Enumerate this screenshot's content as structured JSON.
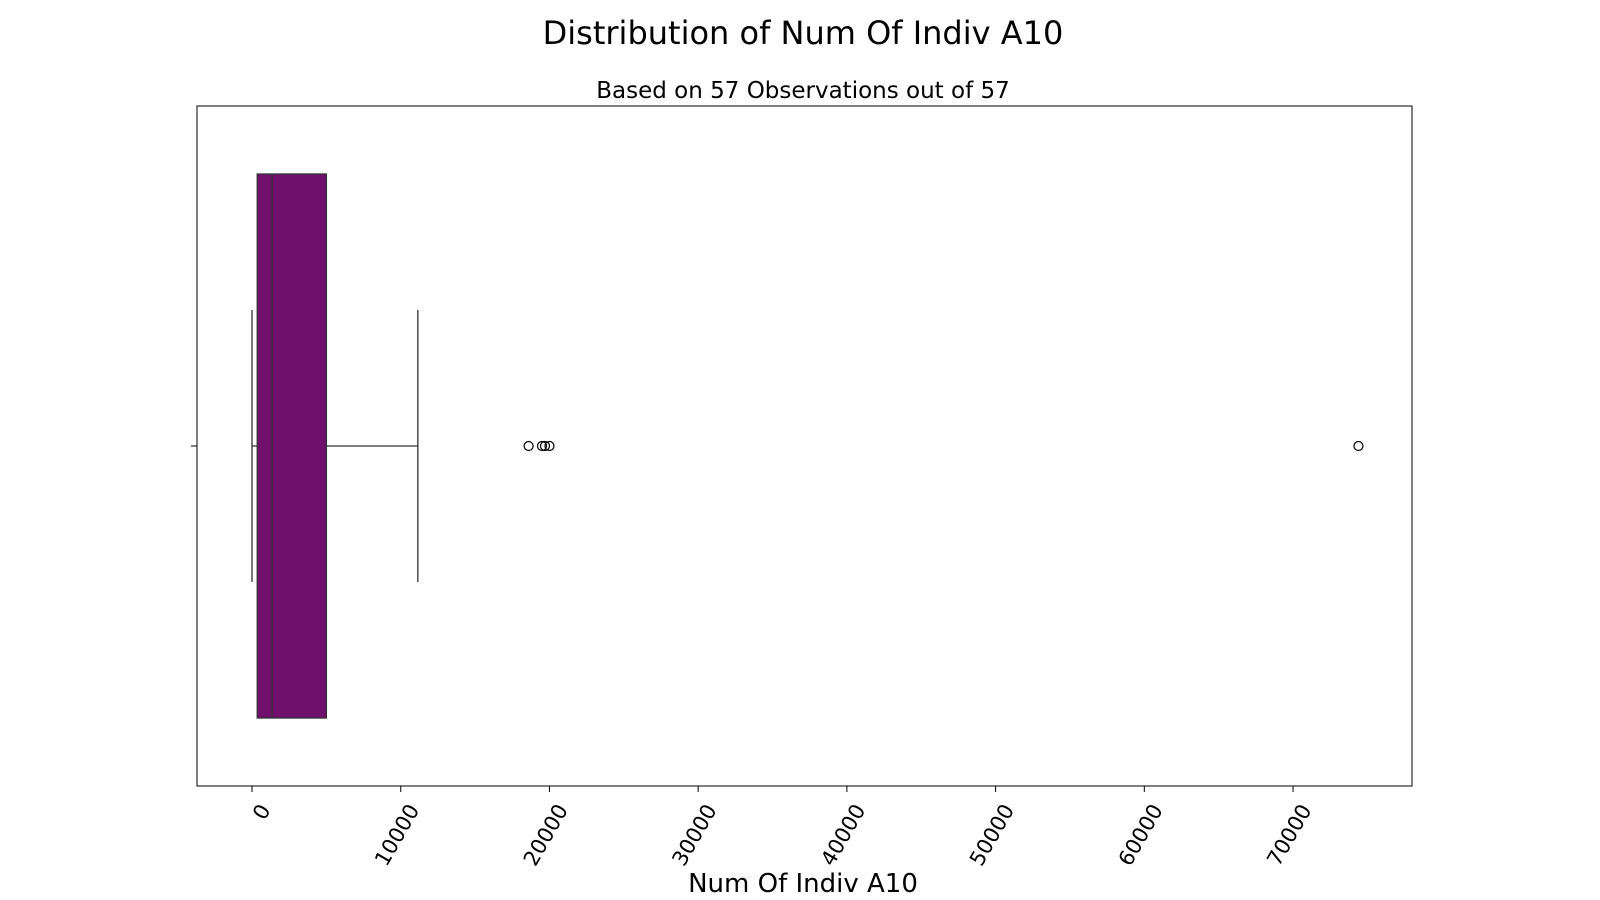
{
  "chart_data": {
    "type": "box",
    "title": "Distribution of Num Of Indiv A10",
    "subtitle": "Based on 57 Observations out of 57",
    "xlabel": "Num Of Indiv A10",
    "ylabel": "",
    "orientation": "horizontal",
    "xlim": [
      -3700,
      78000
    ],
    "xticks": [
      0,
      10000,
      20000,
      30000,
      40000,
      50000,
      60000,
      70000
    ],
    "xtick_labels": [
      "0",
      "10000",
      "20000",
      "30000",
      "40000",
      "50000",
      "60000",
      "70000"
    ],
    "tick_label_rotation": 60,
    "grid": false,
    "box": {
      "whisker_low": 0,
      "q1": 350,
      "median": 1350,
      "q3": 5000,
      "whisker_high": 11150
    },
    "outliers": [
      18600,
      19500,
      19700,
      20000,
      74400
    ],
    "box_color": "#70106c",
    "edge_color": "#333333"
  }
}
